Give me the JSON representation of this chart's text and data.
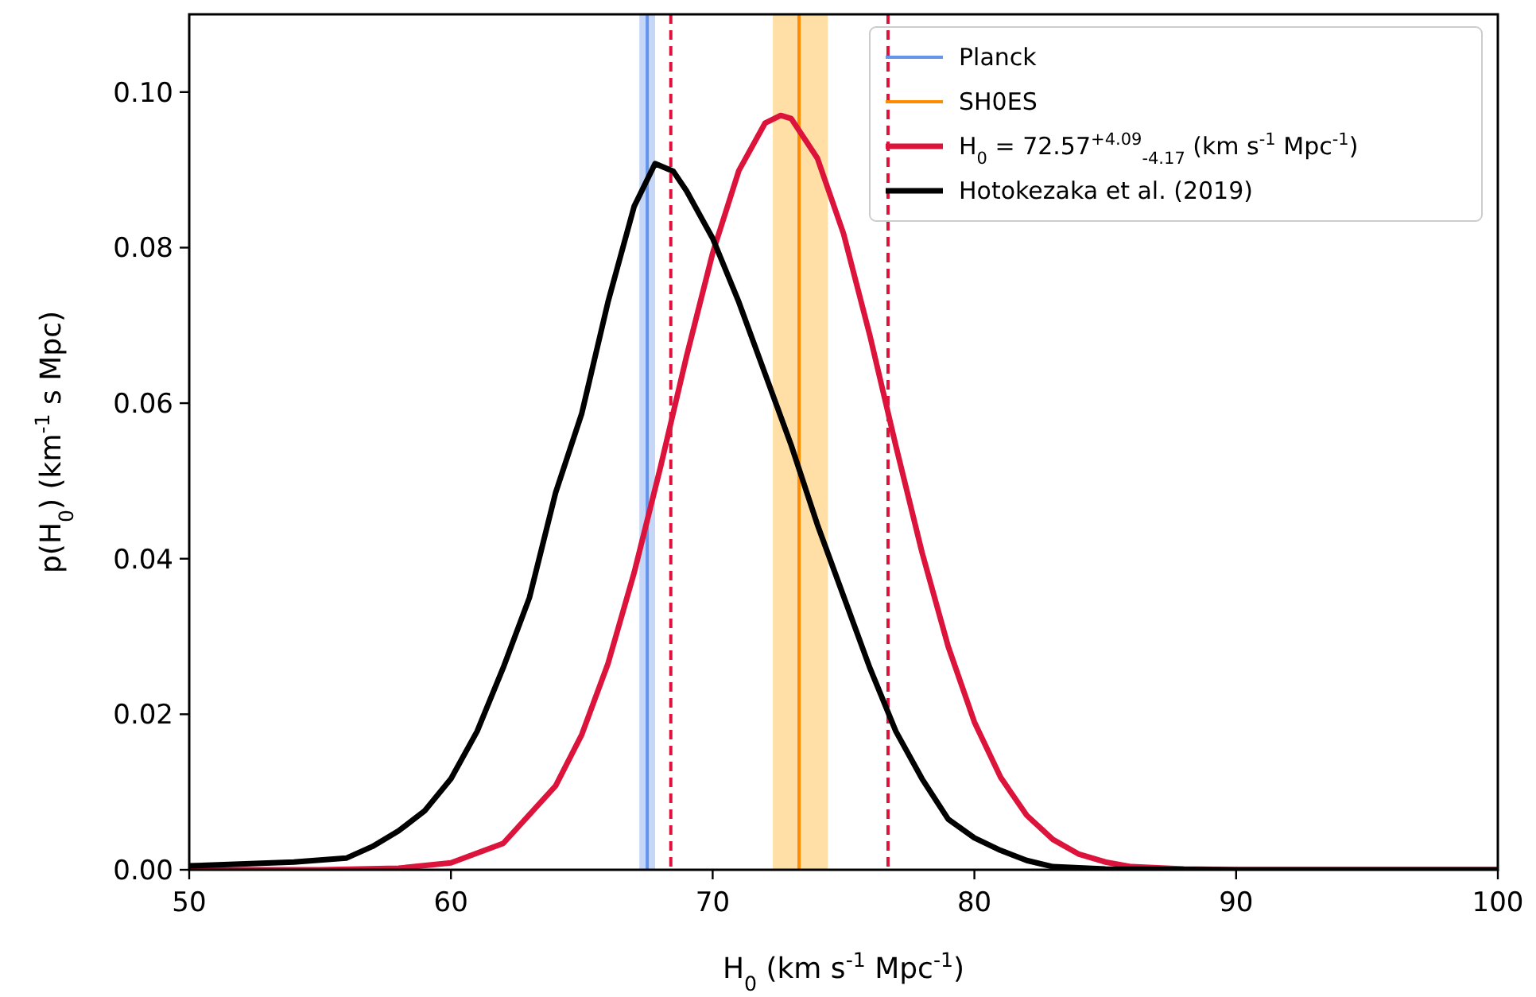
{
  "chart_data": {
    "type": "line",
    "xlabel": "H$_{0}$ (km s$^{-1}$ Mpc$^{-1}$)",
    "ylabel": "p(H$_{0}$) (km$^{-1}$ s Mpc)",
    "xlim": [
      50,
      100
    ],
    "xticks": [
      50,
      60,
      70,
      80,
      90,
      100
    ],
    "ylim": [
      0,
      0.11
    ],
    "yticks": [
      {
        "value": 0,
        "label": "0.00"
      },
      {
        "value": 0.02,
        "label": "0.02"
      },
      {
        "value": 0.04,
        "label": "0.04"
      },
      {
        "value": 0.06,
        "label": "0.06"
      },
      {
        "value": 0.08,
        "label": "0.08"
      },
      {
        "value": 0.1,
        "label": "0.10"
      }
    ],
    "series": [
      {
        "name": "Planck",
        "color": "#6495ed",
        "x": [
          67.5,
          67.5
        ],
        "values": [
          0,
          0.11
        ]
      },
      {
        "name": "SH0ES",
        "color": "#ff8c00",
        "x": [
          73.3,
          73.3
        ],
        "values": [
          0,
          0.11
        ]
      },
      {
        "name": "H$_{0}$ = 72.57$^{+4.09}$$_{-4.17}$ (km s$^{-1}$ Mpc$^{-1}$)",
        "color": "#dc143c",
        "x": [
          50,
          55,
          58,
          60,
          62,
          64,
          65,
          66,
          67,
          68,
          69,
          70,
          71,
          72,
          72.6,
          73,
          74,
          75,
          76,
          77,
          78,
          79,
          80,
          81,
          82,
          83,
          84,
          85,
          86,
          88,
          90,
          100
        ],
        "values": [
          0,
          0,
          0.0002,
          0.0009,
          0.0034,
          0.0108,
          0.0174,
          0.0265,
          0.0382,
          0.0517,
          0.066,
          0.0793,
          0.0899,
          0.096,
          0.097,
          0.0966,
          0.0915,
          0.0818,
          0.0688,
          0.0545,
          0.0408,
          0.0287,
          0.019,
          0.0119,
          0.007,
          0.0039,
          0.002,
          0.001,
          0.0004,
          0.0001,
          0,
          0
        ]
      },
      {
        "name": "Hotokezaka et al. (2019)",
        "color": "#000000",
        "x": [
          50,
          54,
          56,
          57,
          58,
          59,
          60,
          61,
          62,
          63,
          64,
          65,
          66,
          67,
          67.8,
          68.5,
          69,
          70,
          71,
          72,
          73,
          74,
          75,
          76,
          77,
          78,
          79,
          80,
          81,
          82,
          83,
          85,
          90,
          100
        ],
        "values": [
          0.0005,
          0.001,
          0.0015,
          0.003,
          0.005,
          0.0076,
          0.0117,
          0.0178,
          0.026,
          0.035,
          0.0485,
          0.0587,
          0.073,
          0.0853,
          0.0908,
          0.0898,
          0.0873,
          0.0812,
          0.073,
          0.0638,
          0.0546,
          0.0444,
          0.0352,
          0.026,
          0.0178,
          0.0117,
          0.0065,
          0.0041,
          0.0025,
          0.0012,
          0.0004,
          0.0001,
          0,
          0
        ]
      }
    ],
    "bands": [
      {
        "axis": "x",
        "from": 67.2,
        "to": 67.8,
        "color": "#c6d6f7"
      },
      {
        "axis": "x",
        "from": 72.3,
        "to": 74.4,
        "color": "#ffdfa6"
      }
    ],
    "ref_lines": [
      {
        "axis": "x",
        "value": 68.4,
        "color": "#dc143c",
        "line_style": "dashed"
      },
      {
        "axis": "x",
        "value": 76.7,
        "color": "#dc143c",
        "line_style": "dashed"
      }
    ],
    "legend": "top right",
    "grid": false
  }
}
